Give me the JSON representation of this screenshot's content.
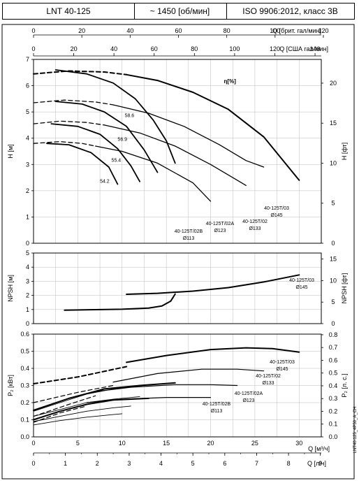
{
  "header": {
    "model": "LNT 40-125",
    "speed": "~ 1450 [об/мин]",
    "standard": "ISO 9906:2012, класс 3B"
  },
  "chart_data": [
    {
      "type": "line",
      "name": "head",
      "ylabel_left": "H [м]",
      "ylabel_right": "H [фт]",
      "ylim": [
        0,
        7
      ],
      "ylim_right_max": 22.966,
      "left_ticks": [
        "0",
        "1",
        "2",
        "3",
        "4",
        "5",
        "6",
        "7"
      ],
      "right_ticks": [
        "0",
        "5",
        "10",
        "15",
        "20"
      ],
      "xlim": [
        0,
        32.5
      ],
      "top_axis1": {
        "label": "Q [брит. гал/мин]",
        "ticks": [
          "0",
          "20",
          "40",
          "60",
          "80",
          "100",
          "120"
        ]
      },
      "top_axis2": {
        "label": "Q [США гал/мин]",
        "ticks": [
          "0",
          "20",
          "40",
          "60",
          "80",
          "100",
          "120",
          "140"
        ]
      },
      "efficiency_label": "η[%]",
      "efficiency_values": [
        "58.6",
        "56.9",
        "55.4",
        "54.2"
      ],
      "curve_labels": [
        {
          "name": "40-125T/03",
          "diameter": "Ø145"
        },
        {
          "name": "40-125T/02",
          "diameter": "Ø133"
        },
        {
          "name": "40-125T/02A",
          "diameter": "Ø123"
        },
        {
          "name": "40-125T/02B",
          "diameter": "Ø113"
        }
      ],
      "series": [
        {
          "name": "40-125T/03",
          "dashed": [
            [
              0,
              6.45
            ],
            [
              4,
              6.56
            ],
            [
              8,
              6.52
            ],
            [
              10.5,
              6.42
            ]
          ],
          "solid": [
            [
              10.5,
              6.42
            ],
            [
              14,
              6.2
            ],
            [
              18,
              5.75
            ],
            [
              22,
              5.1
            ],
            [
              26,
              4.05
            ],
            [
              30,
              2.4
            ]
          ]
        },
        {
          "name": "40-125T/02",
          "dashed": [
            [
              0,
              5.35
            ],
            [
              3.5,
              5.45
            ],
            [
              7,
              5.38
            ],
            [
              9,
              5.27
            ]
          ],
          "solid": [
            [
              9,
              5.27
            ],
            [
              13,
              4.95
            ],
            [
              17,
              4.45
            ],
            [
              21,
              3.75
            ],
            [
              24,
              3.15
            ],
            [
              26,
              2.9
            ]
          ]
        },
        {
          "name": "40-125T/02A",
          "dashed": [
            [
              0,
              4.55
            ],
            [
              3,
              4.65
            ],
            [
              6,
              4.6
            ],
            [
              8,
              4.5
            ]
          ],
          "solid": [
            [
              8,
              4.5
            ],
            [
              12,
              4.2
            ],
            [
              16,
              3.7
            ],
            [
              20,
              3.0
            ],
            [
              23,
              2.4
            ],
            [
              24,
              2.2
            ]
          ]
        },
        {
          "name": "40-125T/02B",
          "dashed": [
            [
              0,
              3.8
            ],
            [
              3,
              3.87
            ],
            [
              5.5,
              3.8
            ],
            [
              7,
              3.7
            ]
          ],
          "solid": [
            [
              7,
              3.7
            ],
            [
              10,
              3.5
            ],
            [
              14,
              3.05
            ],
            [
              18,
              2.3
            ],
            [
              20,
              1.6
            ]
          ]
        }
      ],
      "efficiency_curves": [
        [
          [
            2.5,
            6.6
          ],
          [
            6,
            6.45
          ],
          [
            9,
            6.1
          ],
          [
            11.5,
            5.5
          ],
          [
            13.5,
            4.7
          ],
          [
            15,
            3.9
          ],
          [
            16,
            3.05
          ]
        ],
        [
          [
            2.5,
            5.4
          ],
          [
            5.5,
            5.3
          ],
          [
            8,
            5.0
          ],
          [
            10.5,
            4.45
          ],
          [
            12.5,
            3.55
          ],
          [
            14,
            2.7
          ]
        ],
        [
          [
            2,
            4.55
          ],
          [
            5,
            4.45
          ],
          [
            7.5,
            4.15
          ],
          [
            9.5,
            3.6
          ],
          [
            11,
            2.95
          ],
          [
            12,
            2.35
          ]
        ],
        [
          [
            1.5,
            3.8
          ],
          [
            4,
            3.75
          ],
          [
            6.5,
            3.45
          ],
          [
            8.5,
            2.9
          ],
          [
            9.5,
            2.25
          ]
        ]
      ]
    },
    {
      "type": "line",
      "name": "npsh",
      "ylabel_left": "NPSH [м]",
      "ylabel_right": "NPSH [фт]",
      "ylim": [
        0,
        5
      ],
      "ylim_right_max": 16.4,
      "left_ticks": [
        "0",
        "1",
        "2",
        "3",
        "4",
        "5"
      ],
      "right_ticks": [
        "0",
        "5",
        "10",
        "15"
      ],
      "curve_label": {
        "name": "40-125T/03",
        "diameter": "Ø145"
      },
      "series": [
        {
          "name": "40-125T/03",
          "x": [
            3.5,
            7,
            10,
            13,
            14.5,
            15.5,
            16
          ],
          "y": [
            0.95,
            0.99,
            1.02,
            1.1,
            1.25,
            1.6,
            2.1
          ]
        },
        {
          "name": "40-125T/03",
          "x": [
            10.5,
            14,
            18,
            22,
            26,
            30
          ],
          "y": [
            2.08,
            2.15,
            2.3,
            2.55,
            2.95,
            3.45
          ]
        }
      ]
    },
    {
      "type": "line",
      "name": "power",
      "ylabel_left": "P₂ [кВт]",
      "ylabel_right": "P₂ [л. с.]",
      "ylim": [
        0,
        0.6
      ],
      "ylim_right_max": 0.805,
      "left_ticks": [
        "0.0",
        "0.1",
        "0.2",
        "0.3",
        "0.4",
        "0.5",
        "0.6"
      ],
      "right_ticks": [
        "0.0",
        "0.1",
        "0.2",
        "0.3",
        "0.4",
        "0.5",
        "0.6",
        "0.7",
        "0.8"
      ],
      "xlabel_m3h": "Q [м³/ч]",
      "xlabel_ls": "Q [л/ч]",
      "x_ticks_m3h": [
        "0",
        "5",
        "10",
        "15",
        "20",
        "25",
        "30"
      ],
      "x_ticks_ls": [
        "0",
        "1",
        "2",
        "3",
        "4",
        "5",
        "6",
        "7",
        "8",
        "9"
      ],
      "curve_labels": [
        {
          "name": "40-125T/03",
          "diameter": "Ø145"
        },
        {
          "name": "40-125T/02",
          "diameter": "Ø133"
        },
        {
          "name": "40-125T/02A",
          "diameter": "Ø123"
        },
        {
          "name": "40-125T/02B",
          "diameter": "Ø113"
        }
      ],
      "series": [
        {
          "name": "40-125T/03",
          "dashed": [
            [
              0,
              0.31
            ],
            [
              5,
              0.35
            ],
            [
              10.5,
              0.41
            ]
          ],
          "solid": [
            [
              10.5,
              0.435
            ],
            [
              15,
              0.475
            ],
            [
              20,
              0.51
            ],
            [
              24,
              0.52
            ],
            [
              27,
              0.515
            ],
            [
              30,
              0.495
            ]
          ]
        },
        {
          "name": "40-125T/02",
          "dashed": [
            [
              0,
              0.2
            ],
            [
              5,
              0.26
            ],
            [
              9,
              0.3
            ]
          ],
          "solid": [
            [
              9,
              0.32
            ],
            [
              14,
              0.37
            ],
            [
              19,
              0.395
            ],
            [
              23,
              0.395
            ],
            [
              26,
              0.385
            ]
          ]
        },
        {
          "name": "40-125T/02A",
          "dashed": [
            [
              0,
              0.12
            ],
            [
              4,
              0.19
            ],
            [
              7,
              0.24
            ]
          ],
          "solid": [
            [
              7,
              0.265
            ],
            [
              11,
              0.29
            ],
            [
              16,
              0.305
            ],
            [
              20,
              0.305
            ],
            [
              23,
              0.3
            ]
          ]
        },
        {
          "name": "40-125T/02B",
          "dashed": [
            [
              0,
              0.085
            ],
            [
              3,
              0.14
            ],
            [
              6,
              0.18
            ]
          ],
          "solid": [
            [
              6,
              0.2
            ],
            [
              10,
              0.22
            ],
            [
              15,
              0.23
            ],
            [
              20,
              0.23
            ]
          ]
        }
      ],
      "thick_segments": [
        [
          [
            0,
            0.155
          ],
          [
            4,
            0.225
          ],
          [
            8,
            0.28
          ],
          [
            12,
            0.3
          ],
          [
            16,
            0.315
          ]
        ],
        [
          [
            0,
            0.1
          ],
          [
            3,
            0.15
          ],
          [
            6,
            0.19
          ],
          [
            9,
            0.215
          ],
          [
            13,
            0.225
          ]
        ]
      ],
      "efficiency_power_curves": [
        [
          [
            0,
            0.15
          ],
          [
            3,
            0.2
          ],
          [
            6,
            0.25
          ],
          [
            9,
            0.28
          ],
          [
            12,
            0.3
          ]
        ],
        [
          [
            0,
            0.12
          ],
          [
            3,
            0.16
          ],
          [
            6,
            0.2
          ],
          [
            9,
            0.22
          ],
          [
            12,
            0.235
          ]
        ],
        [
          [
            0,
            0.09
          ],
          [
            3,
            0.12
          ],
          [
            6,
            0.15
          ],
          [
            9,
            0.17
          ],
          [
            11,
            0.18
          ]
        ],
        [
          [
            0,
            0.07
          ],
          [
            3,
            0.095
          ],
          [
            6,
            0.115
          ],
          [
            9,
            0.13
          ],
          [
            10,
            0.135
          ]
        ]
      ]
    }
  ],
  "footer_code": "LNT40-125_4P50_A_CH"
}
